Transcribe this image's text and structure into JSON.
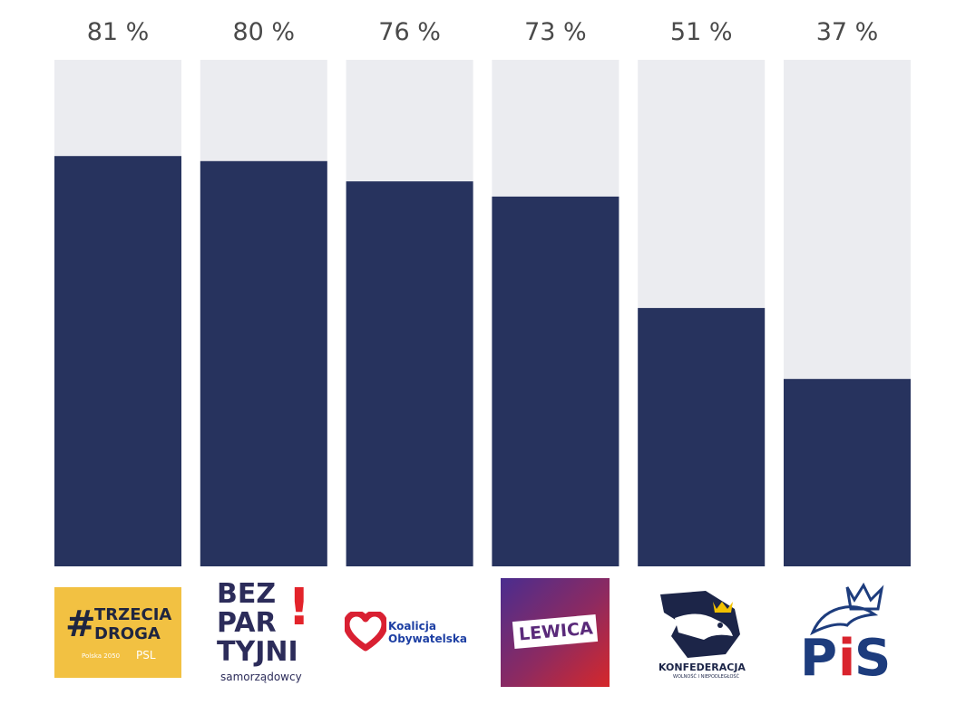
{
  "chart_data": {
    "type": "bar",
    "stacked_to": 100,
    "unit_suffix": " %",
    "ylim": [
      0,
      100
    ],
    "categories": [
      "#TRZECIA DROGA",
      "BEZPARTYJNI samorządowcy",
      "Koalicja Obywatelska",
      "LEWICA",
      "KONFEDERACJA",
      "PiS"
    ],
    "values": [
      81,
      80,
      76,
      73,
      51,
      37
    ],
    "labels": [
      "81 %",
      "80 %",
      "76 %",
      "73 %",
      "51 %",
      "37 %"
    ],
    "colors": {
      "bar": "#27335e",
      "track": "#ebecf0"
    },
    "grid": false,
    "legend": "none"
  },
  "logos": {
    "trzecia_droga": {
      "line1": "TRZECIA",
      "line2": "DROGA",
      "hash": "#",
      "sub1": "Polska 2050",
      "sub2": "PSL",
      "bg": "#f2c142",
      "fg": "#1f2540"
    },
    "bezpartyjni": {
      "line1": "BEZ",
      "line2": "PAR",
      "line3": "TYJNI",
      "sub": "samorządowcy",
      "mark": "!",
      "fg": "#2c2c5a",
      "accent": "#e3232a"
    },
    "koalicja": {
      "line1": "Koalicja",
      "line2": "Obywatelska",
      "fg": "#1d3fa3",
      "heart": "#d92032"
    },
    "lewica": {
      "text": "LEWICA",
      "bg1": "#4a2d8f",
      "bg2": "#d6282a"
    },
    "konfederacja": {
      "text": "KONFEDERACJA",
      "sub": "WOLNOŚĆ I NIEPODLEGŁOŚĆ",
      "fg": "#1c2548",
      "crown": "#f2c100"
    },
    "pis": {
      "p": "P",
      "i": "i",
      "s": "S",
      "fg": "#1d3c7d",
      "accent": "#d9232d"
    }
  }
}
